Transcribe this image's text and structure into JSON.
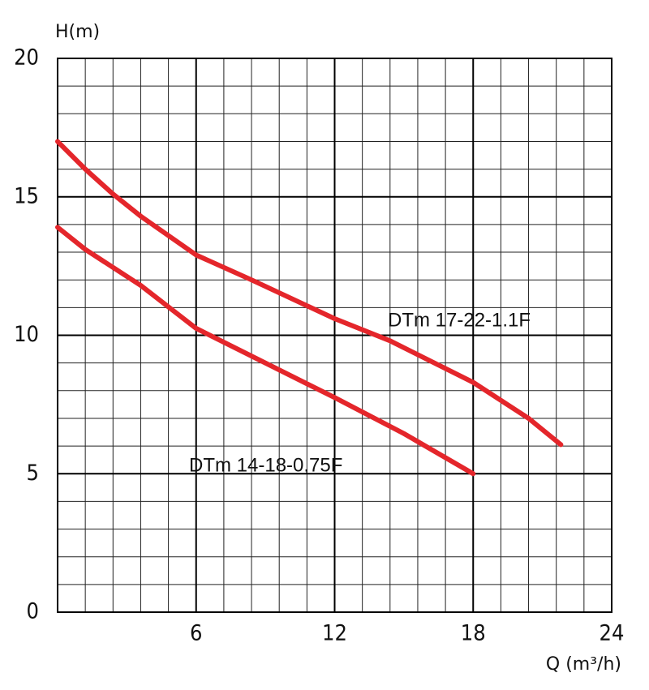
{
  "chart_data": {
    "type": "line",
    "y_label": "H(m)",
    "x_label": "Q (m³/h)",
    "series": [
      {
        "name": "DTm 17-22-1.1F",
        "color": "#e4262b",
        "x": [
          0,
          1.2,
          2.4,
          3.6,
          6,
          8.4,
          12,
          14.4,
          18,
          20.4,
          21.8
        ],
        "values": [
          17,
          16.0,
          15.1,
          14.3,
          12.9,
          12.0,
          10.6,
          9.8,
          8.3,
          7.0,
          6.05
        ]
      },
      {
        "name": "DTm 14-18-0,75F",
        "color": "#e4262b",
        "x": [
          0,
          1.2,
          3.6,
          6,
          9,
          12,
          15,
          18
        ],
        "values": [
          13.9,
          13.1,
          11.8,
          10.25,
          9.0,
          7.75,
          6.45,
          5.0
        ]
      }
    ],
    "xlim": [
      0,
      24
    ],
    "xticks": [
      6,
      12,
      18,
      24
    ],
    "ylim": [
      0,
      20
    ],
    "yticks": [
      0,
      5,
      10,
      15,
      20
    ],
    "minor_xticks": [
      1.2,
      2.4,
      3.6,
      4.8,
      7.2,
      8.4,
      9.6,
      10.8,
      13.2,
      14.4,
      15.6,
      16.8,
      19.2,
      20.4,
      21.6,
      22.8
    ],
    "minor_yticks": [
      1,
      2,
      3,
      4,
      6,
      7,
      8,
      9,
      11,
      12,
      13,
      14,
      16,
      17,
      18,
      19
    ],
    "grid": true
  }
}
